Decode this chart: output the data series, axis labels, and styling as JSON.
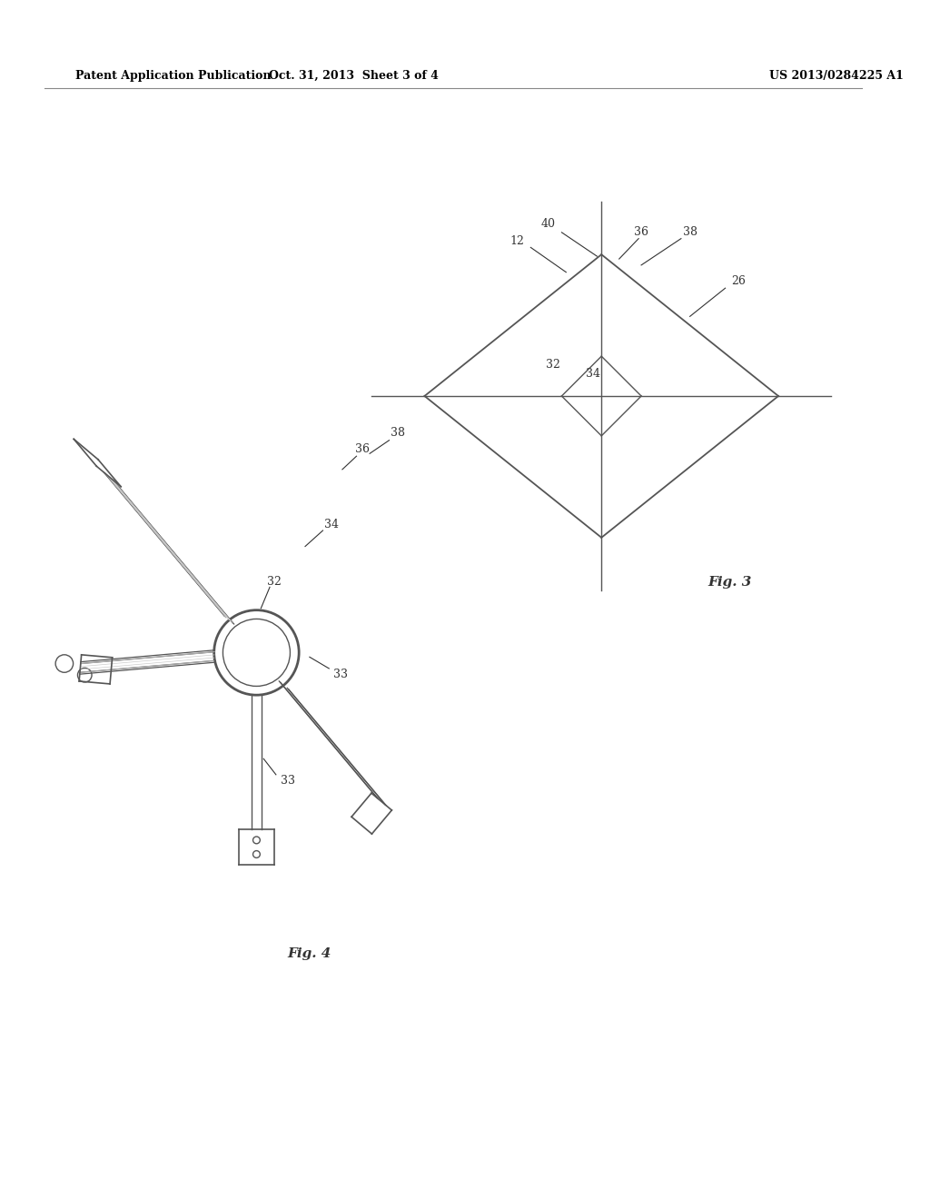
{
  "background_color": "#ffffff",
  "header_left": "Patent Application Publication",
  "header_center": "Oct. 31, 2013  Sheet 3 of 4",
  "header_right": "US 2013/0284225 A1",
  "fig3_label": "Fig. 3",
  "fig4_label": "Fig. 4",
  "line_color": "#555555",
  "text_color": "#333333"
}
